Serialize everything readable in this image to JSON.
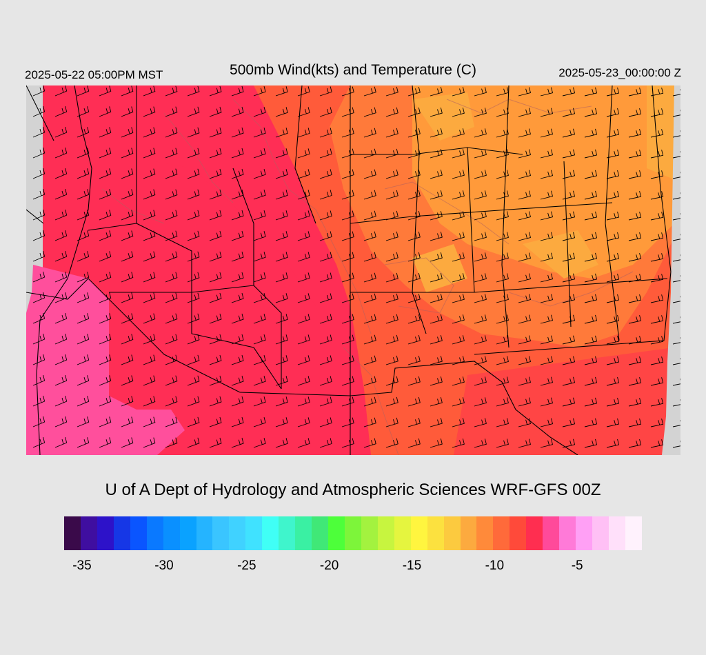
{
  "header": {
    "local_time": "2025-05-22 05:00PM MST",
    "title": "500mb Wind(kts) and Temperature (C)",
    "utc_time": "2025-05-23_00:00:00 Z"
  },
  "credit": "U of A Dept of Hydrology and Atmospheric Sciences WRF-GFS 00Z",
  "legend": {
    "colors": [
      "#3a0a4a",
      "#3f0ea0",
      "#2d12c9",
      "#1637e6",
      "#0a55ff",
      "#0a79ff",
      "#0a90ff",
      "#0aa2ff",
      "#25b4ff",
      "#3ac5ff",
      "#40d2ff",
      "#40e2ff",
      "#40fff6",
      "#3ff5cc",
      "#3af0a3",
      "#40e877",
      "#4dff3a",
      "#7df53a",
      "#a3f23f",
      "#c7f53f",
      "#e5f53f",
      "#fff53f",
      "#fce13f",
      "#fcca3f",
      "#fcaa3f",
      "#ff8a3a",
      "#ff6a3a",
      "#ff4a3a",
      "#ff2e50",
      "#ff4a9a",
      "#ff7ad8",
      "#ffa0f5",
      "#ffc0f5",
      "#ffe0fa",
      "#fff2fd"
    ],
    "ticks": [
      {
        "label": "-35",
        "frac": 0.031
      },
      {
        "label": "-30",
        "frac": 0.173
      },
      {
        "label": "-25",
        "frac": 0.316
      },
      {
        "label": "-20",
        "frac": 0.459
      },
      {
        "label": "-15",
        "frac": 0.602
      },
      {
        "label": "-10",
        "frac": 0.745
      },
      {
        "label": "-5",
        "frac": 0.888
      }
    ]
  },
  "map_colors": {
    "no_data": "#d3d3d3",
    "west_pink": "#ff4f9c",
    "red": "#ff2e55",
    "red_orange": "#ff4545",
    "orange_red": "#ff5b3a",
    "orange": "#ff7a3a",
    "light_orange": "#ff9a3a",
    "amber": "#fcaa3f",
    "border": "#000000",
    "terrain": "#b06060"
  }
}
